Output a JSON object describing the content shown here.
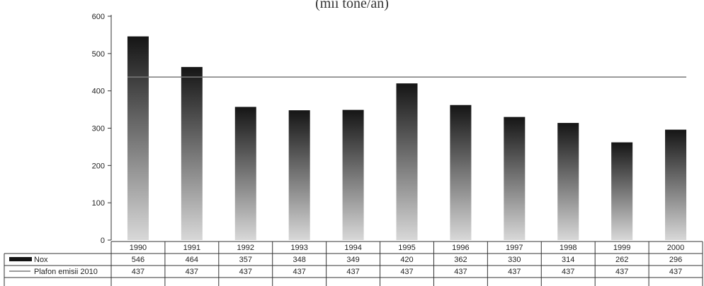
{
  "caption": "(mii tone/an)",
  "chart_data": {
    "type": "bar",
    "categories": [
      "1990",
      "1991",
      "1992",
      "1993",
      "1994",
      "1995",
      "1996",
      "1997",
      "1998",
      "1999",
      "2000"
    ],
    "series": [
      {
        "name": "Nox",
        "kind": "bar",
        "values": [
          546,
          464,
          357,
          348,
          349,
          420,
          362,
          330,
          314,
          262,
          296
        ]
      },
      {
        "name": "Plafon emisii 2010",
        "kind": "line",
        "values": [
          437,
          437,
          437,
          437,
          437,
          437,
          437,
          437,
          437,
          437,
          437
        ]
      }
    ],
    "ylim": [
      0,
      600
    ],
    "yticks": [
      "0",
      "100",
      "200",
      "300",
      "400",
      "500",
      "600"
    ],
    "data_table": true,
    "legend": "data-table-left",
    "colors": {
      "bar_top": "#151515",
      "bar_bottom": "#d8d8d8",
      "line": "#7a7a7a"
    }
  }
}
